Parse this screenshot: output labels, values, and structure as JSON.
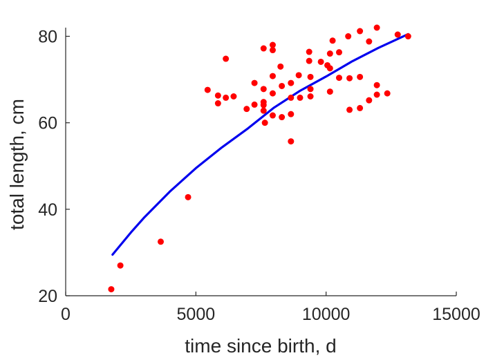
{
  "chart_data": {
    "type": "scatter",
    "xlabel": "time since birth, d",
    "ylabel": "total length, cm",
    "xlim": [
      0,
      15000
    ],
    "ylim": [
      20,
      82
    ],
    "x_ticks": [
      0,
      5000,
      10000,
      15000
    ],
    "y_ticks": [
      20,
      40,
      60,
      80
    ],
    "x_tick_labels": [
      "0",
      "5000",
      "10000",
      "15000"
    ],
    "y_tick_labels": [
      "20",
      "40",
      "60",
      "80"
    ],
    "grid": false,
    "series": [
      {
        "type": "scatter",
        "color": "#ff0000",
        "points": [
          [
            1750,
            21.5
          ],
          [
            2100,
            27
          ],
          [
            3650,
            32.5
          ],
          [
            4700,
            42.8
          ],
          [
            5450,
            67.6
          ],
          [
            5850,
            66.3
          ],
          [
            5850,
            64.5
          ],
          [
            6150,
            65.8
          ],
          [
            6150,
            74.8
          ],
          [
            6450,
            66.1
          ],
          [
            6950,
            63.2
          ],
          [
            7250,
            69.2
          ],
          [
            7250,
            64.2
          ],
          [
            7600,
            77.2
          ],
          [
            7600,
            67.8
          ],
          [
            7600,
            64.8
          ],
          [
            7600,
            64.1
          ],
          [
            7600,
            62.8
          ],
          [
            7650,
            60
          ],
          [
            7950,
            78
          ],
          [
            7950,
            76.8
          ],
          [
            7950,
            70.8
          ],
          [
            7950,
            66.8
          ],
          [
            7950,
            61.7
          ],
          [
            8250,
            73
          ],
          [
            8300,
            68.5
          ],
          [
            8300,
            61.3
          ],
          [
            8650,
            69.2
          ],
          [
            8650,
            65.8
          ],
          [
            8650,
            62
          ],
          [
            8650,
            55.7
          ],
          [
            8950,
            71
          ],
          [
            9000,
            65.8
          ],
          [
            9350,
            76.4
          ],
          [
            9350,
            74.3
          ],
          [
            9400,
            70.6
          ],
          [
            9400,
            67.8
          ],
          [
            9400,
            66.1
          ],
          [
            9800,
            74.1
          ],
          [
            10050,
            73.3
          ],
          [
            10150,
            76
          ],
          [
            10150,
            72.6
          ],
          [
            10150,
            67.2
          ],
          [
            10250,
            79
          ],
          [
            10500,
            76.3
          ],
          [
            10500,
            70.4
          ],
          [
            10850,
            80
          ],
          [
            10900,
            70.3
          ],
          [
            10900,
            63
          ],
          [
            11300,
            81.2
          ],
          [
            11300,
            70.6
          ],
          [
            11300,
            63.4
          ],
          [
            11650,
            78.8
          ],
          [
            11650,
            65.2
          ],
          [
            11950,
            82
          ],
          [
            11950,
            68.7
          ],
          [
            11950,
            66.5
          ],
          [
            12350,
            66.8
          ],
          [
            12750,
            80.4
          ],
          [
            13150,
            80
          ]
        ]
      },
      {
        "type": "line",
        "color": "#0000ee",
        "x": [
          1800,
          2500,
          3000,
          4000,
          5000,
          6000,
          7000,
          8000,
          9000,
          10000,
          11000,
          12000,
          13150
        ],
        "y": [
          29.5,
          34.6,
          38.0,
          44.1,
          49.5,
          54.3,
          58.7,
          63.5,
          67.4,
          70.7,
          74.2,
          77.3,
          80.5
        ]
      }
    ]
  }
}
